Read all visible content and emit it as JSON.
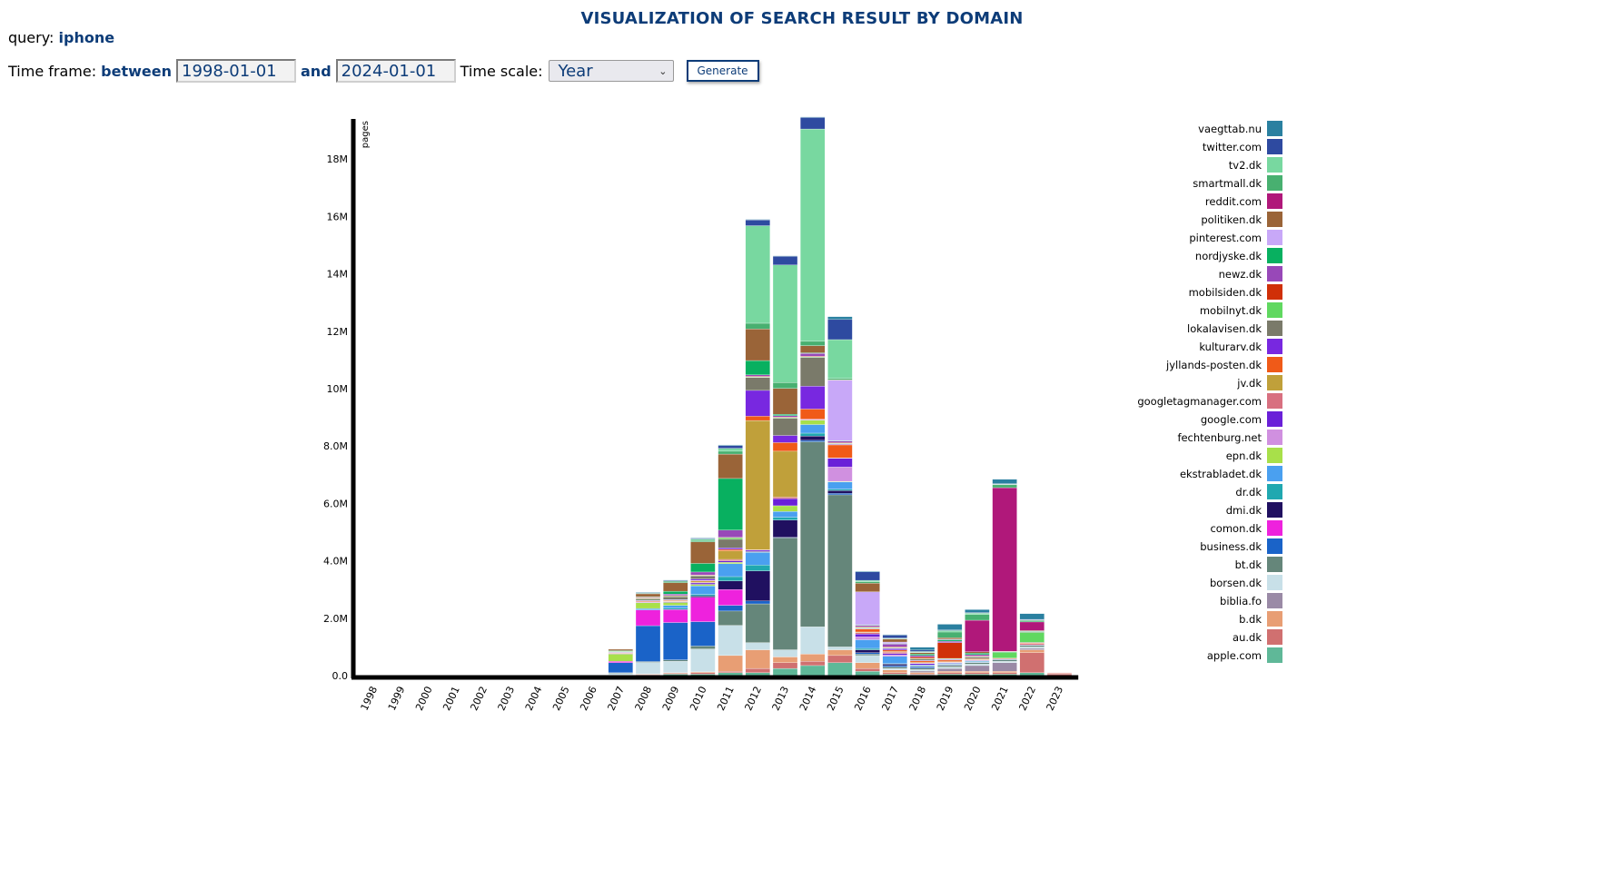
{
  "page": {
    "title": "VISUALIZATION OF SEARCH RESULT BY DOMAIN",
    "query_label": "query:",
    "query_value": "iphone",
    "timeframe_label": "Time frame:",
    "between_label": "between",
    "start_date": "1998-01-01",
    "and_label": "and",
    "end_date": "2024-01-01",
    "timescale_label": "Time scale:",
    "timescale_value": "Year",
    "generate_label": "Generate"
  },
  "chart_data": {
    "type": "bar",
    "stacked": true,
    "title": "",
    "xlabel": "",
    "ylabel": "pages",
    "ylim": [
      0,
      19400000
    ],
    "yticks": [
      {
        "value": 0,
        "label": "0.0"
      },
      {
        "value": 2000000,
        "label": "2.0M"
      },
      {
        "value": 4000000,
        "label": "4.0M"
      },
      {
        "value": 6000000,
        "label": "6.0M"
      },
      {
        "value": 8000000,
        "label": "8.0M"
      },
      {
        "value": 10000000,
        "label": "10M"
      },
      {
        "value": 12000000,
        "label": "12M"
      },
      {
        "value": 14000000,
        "label": "14M"
      },
      {
        "value": 16000000,
        "label": "16M"
      },
      {
        "value": 18000000,
        "label": "18M"
      }
    ],
    "legend_position": "right",
    "categories": [
      "1998",
      "1999",
      "2000",
      "2001",
      "2002",
      "2003",
      "2004",
      "2005",
      "2006",
      "2007",
      "2008",
      "2009",
      "2010",
      "2011",
      "2012",
      "2013",
      "2014",
      "2015",
      "2016",
      "2017",
      "2018",
      "2019",
      "2020",
      "2021",
      "2022",
      "2023"
    ],
    "series": [
      {
        "name": "apple.com",
        "color": "#5fb898",
        "values": [
          0,
          0,
          0,
          0,
          0,
          0,
          0,
          0,
          0,
          0.01,
          0.02,
          0.05,
          0.05,
          0.1,
          0.1,
          0.25,
          0.35,
          0.45,
          0.15,
          0.05,
          0.03,
          0.05,
          0.05,
          0.05,
          0.1,
          0.01
        ]
      },
      {
        "name": "au.dk",
        "color": "#d07070",
        "values": [
          0,
          0,
          0,
          0,
          0,
          0,
          0,
          0,
          0,
          0.01,
          0.02,
          0.03,
          0.05,
          0.05,
          0.15,
          0.2,
          0.15,
          0.25,
          0.1,
          0.05,
          0.03,
          0.05,
          0.05,
          0.05,
          0.7,
          0.05
        ]
      },
      {
        "name": "b.dk",
        "color": "#e89e74",
        "values": [
          0,
          0,
          0,
          0,
          0,
          0,
          0,
          0,
          0,
          0.01,
          0.02,
          0.02,
          0.03,
          0.55,
          0.65,
          0.2,
          0.25,
          0.2,
          0.2,
          0.1,
          0.05,
          0.05,
          0.05,
          0.05,
          0.1,
          0.02
        ]
      },
      {
        "name": "biblia.fo",
        "color": "#9a8aa6",
        "values": [
          0,
          0,
          0,
          0,
          0,
          0,
          0,
          0,
          0,
          0,
          0,
          0,
          0,
          0,
          0,
          0,
          0,
          0,
          0,
          0,
          0.05,
          0.1,
          0.2,
          0.3,
          0.05,
          0
        ]
      },
      {
        "name": "borsen.dk",
        "color": "#c8e0e8",
        "values": [
          0,
          0,
          0,
          0,
          0,
          0,
          0,
          0,
          0.02,
          0.05,
          0.4,
          0.4,
          0.8,
          1.05,
          0.25,
          0.25,
          0.95,
          0.1,
          0.25,
          0.05,
          0.05,
          0.05,
          0.05,
          0.05,
          0.05,
          0
        ]
      },
      {
        "name": "bt.dk",
        "color": "#65867a",
        "values": [
          0,
          0,
          0,
          0,
          0,
          0,
          0,
          0,
          0,
          0.02,
          0.03,
          0.05,
          0.1,
          0.5,
          1.35,
          3.9,
          6.45,
          5.3,
          0.05,
          0.05,
          0.05,
          0.05,
          0.05,
          0.05,
          0.05,
          0
        ]
      },
      {
        "name": "business.dk",
        "color": "#1a63c8",
        "values": [
          0,
          0,
          0,
          0,
          0,
          0,
          0,
          0,
          0,
          0.35,
          1.25,
          1.3,
          0.85,
          0.2,
          0.1,
          0.02,
          0.05,
          0.05,
          0.05,
          0.05,
          0.05,
          0.02,
          0.02,
          0.02,
          0.02,
          0
        ]
      },
      {
        "name": "comon.dk",
        "color": "#ee22dd",
        "values": [
          0,
          0,
          0,
          0,
          0,
          0,
          0,
          0,
          0,
          0.05,
          0.55,
          0.45,
          0.85,
          0.55,
          0,
          0,
          0,
          0,
          0,
          0,
          0,
          0,
          0,
          0,
          0,
          0
        ]
      },
      {
        "name": "dmi.dk",
        "color": "#201060",
        "values": [
          0,
          0,
          0,
          0,
          0,
          0,
          0,
          0,
          0,
          0,
          0,
          0,
          0.05,
          0.3,
          1.05,
          0.6,
          0.15,
          0.1,
          0.1,
          0.05,
          0.02,
          0.02,
          0,
          0,
          0,
          0
        ]
      },
      {
        "name": "dr.dk",
        "color": "#20a8b0",
        "values": [
          0,
          0,
          0,
          0,
          0,
          0,
          0,
          0,
          0,
          0,
          0,
          0.05,
          0.05,
          0.15,
          0.2,
          0.1,
          0.1,
          0.05,
          0.05,
          0.02,
          0.02,
          0.02,
          0.02,
          0,
          0,
          0
        ]
      },
      {
        "name": "ekstrabladet.dk",
        "color": "#4aa0f0",
        "values": [
          0,
          0,
          0,
          0,
          0,
          0,
          0,
          0,
          0,
          0,
          0.05,
          0.1,
          0.3,
          0.45,
          0.45,
          0.2,
          0.3,
          0.25,
          0.3,
          0.25,
          0.02,
          0.02,
          0.02,
          0,
          0,
          0
        ]
      },
      {
        "name": "epn.dk",
        "color": "#a8e04a",
        "values": [
          0,
          0,
          0,
          0,
          0,
          0,
          0,
          0,
          0,
          0.25,
          0.2,
          0.1,
          0.05,
          0.05,
          0.02,
          0.2,
          0.15,
          0.02,
          0,
          0,
          0,
          0,
          0,
          0,
          0,
          0
        ]
      },
      {
        "name": "fechtenburg.net",
        "color": "#d090e0",
        "values": [
          0,
          0,
          0,
          0,
          0,
          0,
          0,
          0,
          0,
          0,
          0,
          0,
          0,
          0,
          0,
          0,
          0,
          0.5,
          0.1,
          0.05,
          0,
          0,
          0,
          0,
          0,
          0
        ]
      },
      {
        "name": "google.com",
        "color": "#6a20d8",
        "values": [
          0,
          0,
          0,
          0,
          0,
          0,
          0,
          0,
          0,
          0.02,
          0.02,
          0.02,
          0.05,
          0.05,
          0.05,
          0.25,
          0.02,
          0.3,
          0.1,
          0.05,
          0.05,
          0.02,
          0.02,
          0,
          0,
          0
        ]
      },
      {
        "name": "googletagmanager.com",
        "color": "#d87080",
        "values": [
          0,
          0,
          0,
          0,
          0,
          0,
          0,
          0,
          0,
          0.01,
          0.02,
          0.02,
          0.02,
          0.05,
          0.02,
          0.05,
          0.02,
          0.02,
          0.05,
          0.05,
          0.02,
          0.02,
          0.02,
          0.02,
          0.05,
          0.02
        ]
      },
      {
        "name": "jv.dk",
        "color": "#c0a03a",
        "values": [
          0,
          0,
          0,
          0,
          0,
          0,
          0,
          0,
          0,
          0,
          0,
          0.02,
          0.05,
          0.3,
          4.5,
          1.6,
          0,
          0,
          0.02,
          0.02,
          0.02,
          0.02,
          0.02,
          0,
          0,
          0
        ]
      },
      {
        "name": "jyllands-posten.dk",
        "color": "#f05a18",
        "values": [
          0,
          0,
          0,
          0,
          0,
          0,
          0,
          0,
          0,
          0.02,
          0.02,
          0.02,
          0.02,
          0.05,
          0.15,
          0.3,
          0.35,
          0.45,
          0.1,
          0.05,
          0.05,
          0.05,
          0.02,
          0.02,
          0.02,
          0
        ]
      },
      {
        "name": "kulturarv.dk",
        "color": "#7828e0",
        "values": [
          0,
          0,
          0,
          0,
          0,
          0,
          0,
          0,
          0,
          0.02,
          0.02,
          0.02,
          0.05,
          0.05,
          0.9,
          0.25,
          0.8,
          0.02,
          0.02,
          0.05,
          0.02,
          0.02,
          0,
          0,
          0,
          0
        ]
      },
      {
        "name": "lokalavisen.dk",
        "color": "#7a7a6a",
        "values": [
          0,
          0,
          0,
          0,
          0,
          0,
          0,
          0,
          0,
          0,
          0.05,
          0.1,
          0.1,
          0.3,
          0.45,
          0.6,
          1.0,
          0.02,
          0.02,
          0.02,
          0.05,
          0.02,
          0.05,
          0,
          0.02,
          0
        ]
      },
      {
        "name": "mobilnyt.dk",
        "color": "#60d860",
        "values": [
          0,
          0,
          0,
          0,
          0,
          0,
          0,
          0,
          0,
          0.02,
          0.02,
          0.02,
          0.02,
          0.05,
          0.02,
          0.02,
          0.02,
          0.02,
          0.02,
          0.02,
          0.02,
          0.02,
          0.02,
          0.2,
          0.35,
          0
        ]
      },
      {
        "name": "mobilsiden.dk",
        "color": "#d03008",
        "values": [
          0,
          0,
          0,
          0,
          0,
          0,
          0,
          0,
          0,
          0.01,
          0.02,
          0.02,
          0.02,
          0.02,
          0.02,
          0.02,
          0.02,
          0.02,
          0.02,
          0.02,
          0.05,
          0.55,
          0.02,
          0,
          0,
          0
        ]
      },
      {
        "name": "newz.dk",
        "color": "#9848b8",
        "values": [
          0,
          0,
          0,
          0,
          0,
          0,
          0,
          0,
          0,
          0,
          0.02,
          0.05,
          0.1,
          0.25,
          0.05,
          0.05,
          0.1,
          0.05,
          0.05,
          0.1,
          0.05,
          0.05,
          0.05,
          0,
          0.02,
          0
        ]
      },
      {
        "name": "nordjyske.dk",
        "color": "#08b060",
        "values": [
          0,
          0,
          0,
          0,
          0,
          0,
          0,
          0,
          0,
          0.02,
          0.02,
          0.1,
          0.3,
          1.8,
          0.5,
          0.05,
          0.02,
          0.02,
          0.02,
          0.02,
          0.05,
          0.05,
          0.05,
          0.02,
          0.02,
          0
        ]
      },
      {
        "name": "pinterest.com",
        "color": "#c8a8f8",
        "values": [
          0,
          0,
          0,
          0,
          0,
          0,
          0,
          0,
          0,
          0,
          0,
          0,
          0,
          0,
          0,
          0,
          0,
          2.1,
          1.15,
          0.05,
          0,
          0.02,
          0,
          0,
          0,
          0
        ]
      },
      {
        "name": "politiken.dk",
        "color": "#9a6438",
        "values": [
          0,
          0,
          0,
          0,
          0,
          0,
          0,
          0,
          0,
          0.05,
          0.1,
          0.3,
          0.75,
          0.85,
          1.1,
          0.9,
          0.25,
          0.02,
          0.3,
          0.1,
          0.05,
          0.05,
          0.05,
          0.02,
          0.02,
          0
        ]
      },
      {
        "name": "reddit.com",
        "color": "#b0187a",
        "values": [
          0,
          0,
          0,
          0,
          0,
          0,
          0,
          0,
          0,
          0,
          0,
          0,
          0,
          0,
          0,
          0,
          0,
          0,
          0,
          0,
          0,
          0,
          1.1,
          5.7,
          0.3,
          0
        ]
      },
      {
        "name": "smartmall.dk",
        "color": "#48b070",
        "values": [
          0,
          0,
          0,
          0,
          0,
          0,
          0,
          0,
          0,
          0.01,
          0.02,
          0.05,
          0.05,
          0.1,
          0.2,
          0.2,
          0.15,
          0.05,
          0.05,
          0.02,
          0.02,
          0.2,
          0.2,
          0.1,
          0.05,
          0
        ]
      },
      {
        "name": "tv2.dk",
        "color": "#78d8a0",
        "values": [
          0,
          0,
          0,
          0,
          0,
          0,
          0,
          0,
          0,
          0,
          0,
          0,
          0.05,
          0.1,
          3.4,
          4.1,
          7.4,
          1.35,
          0.05,
          0.02,
          0.02,
          0.05,
          0.05,
          0.02,
          0.02,
          0
        ]
      },
      {
        "name": "twitter.com",
        "color": "#2e4aa0",
        "values": [
          0,
          0,
          0,
          0,
          0,
          0,
          0,
          0,
          0,
          0,
          0.02,
          0.02,
          0.02,
          0.1,
          0.2,
          0.3,
          0.4,
          0.7,
          0.3,
          0.1,
          0.05,
          0.02,
          0.02,
          0.02,
          0.02,
          0
        ]
      },
      {
        "name": "vaegttab.nu",
        "color": "#2a80a0",
        "values": [
          0,
          0,
          0,
          0,
          0,
          0,
          0,
          0,
          0,
          0,
          0.02,
          0.02,
          0.02,
          0.02,
          0.02,
          0.02,
          0.02,
          0.1,
          0.02,
          0.02,
          0.1,
          0.2,
          0.1,
          0.15,
          0.2,
          0
        ]
      }
    ],
    "value_unit_multiplier": 1000000
  }
}
